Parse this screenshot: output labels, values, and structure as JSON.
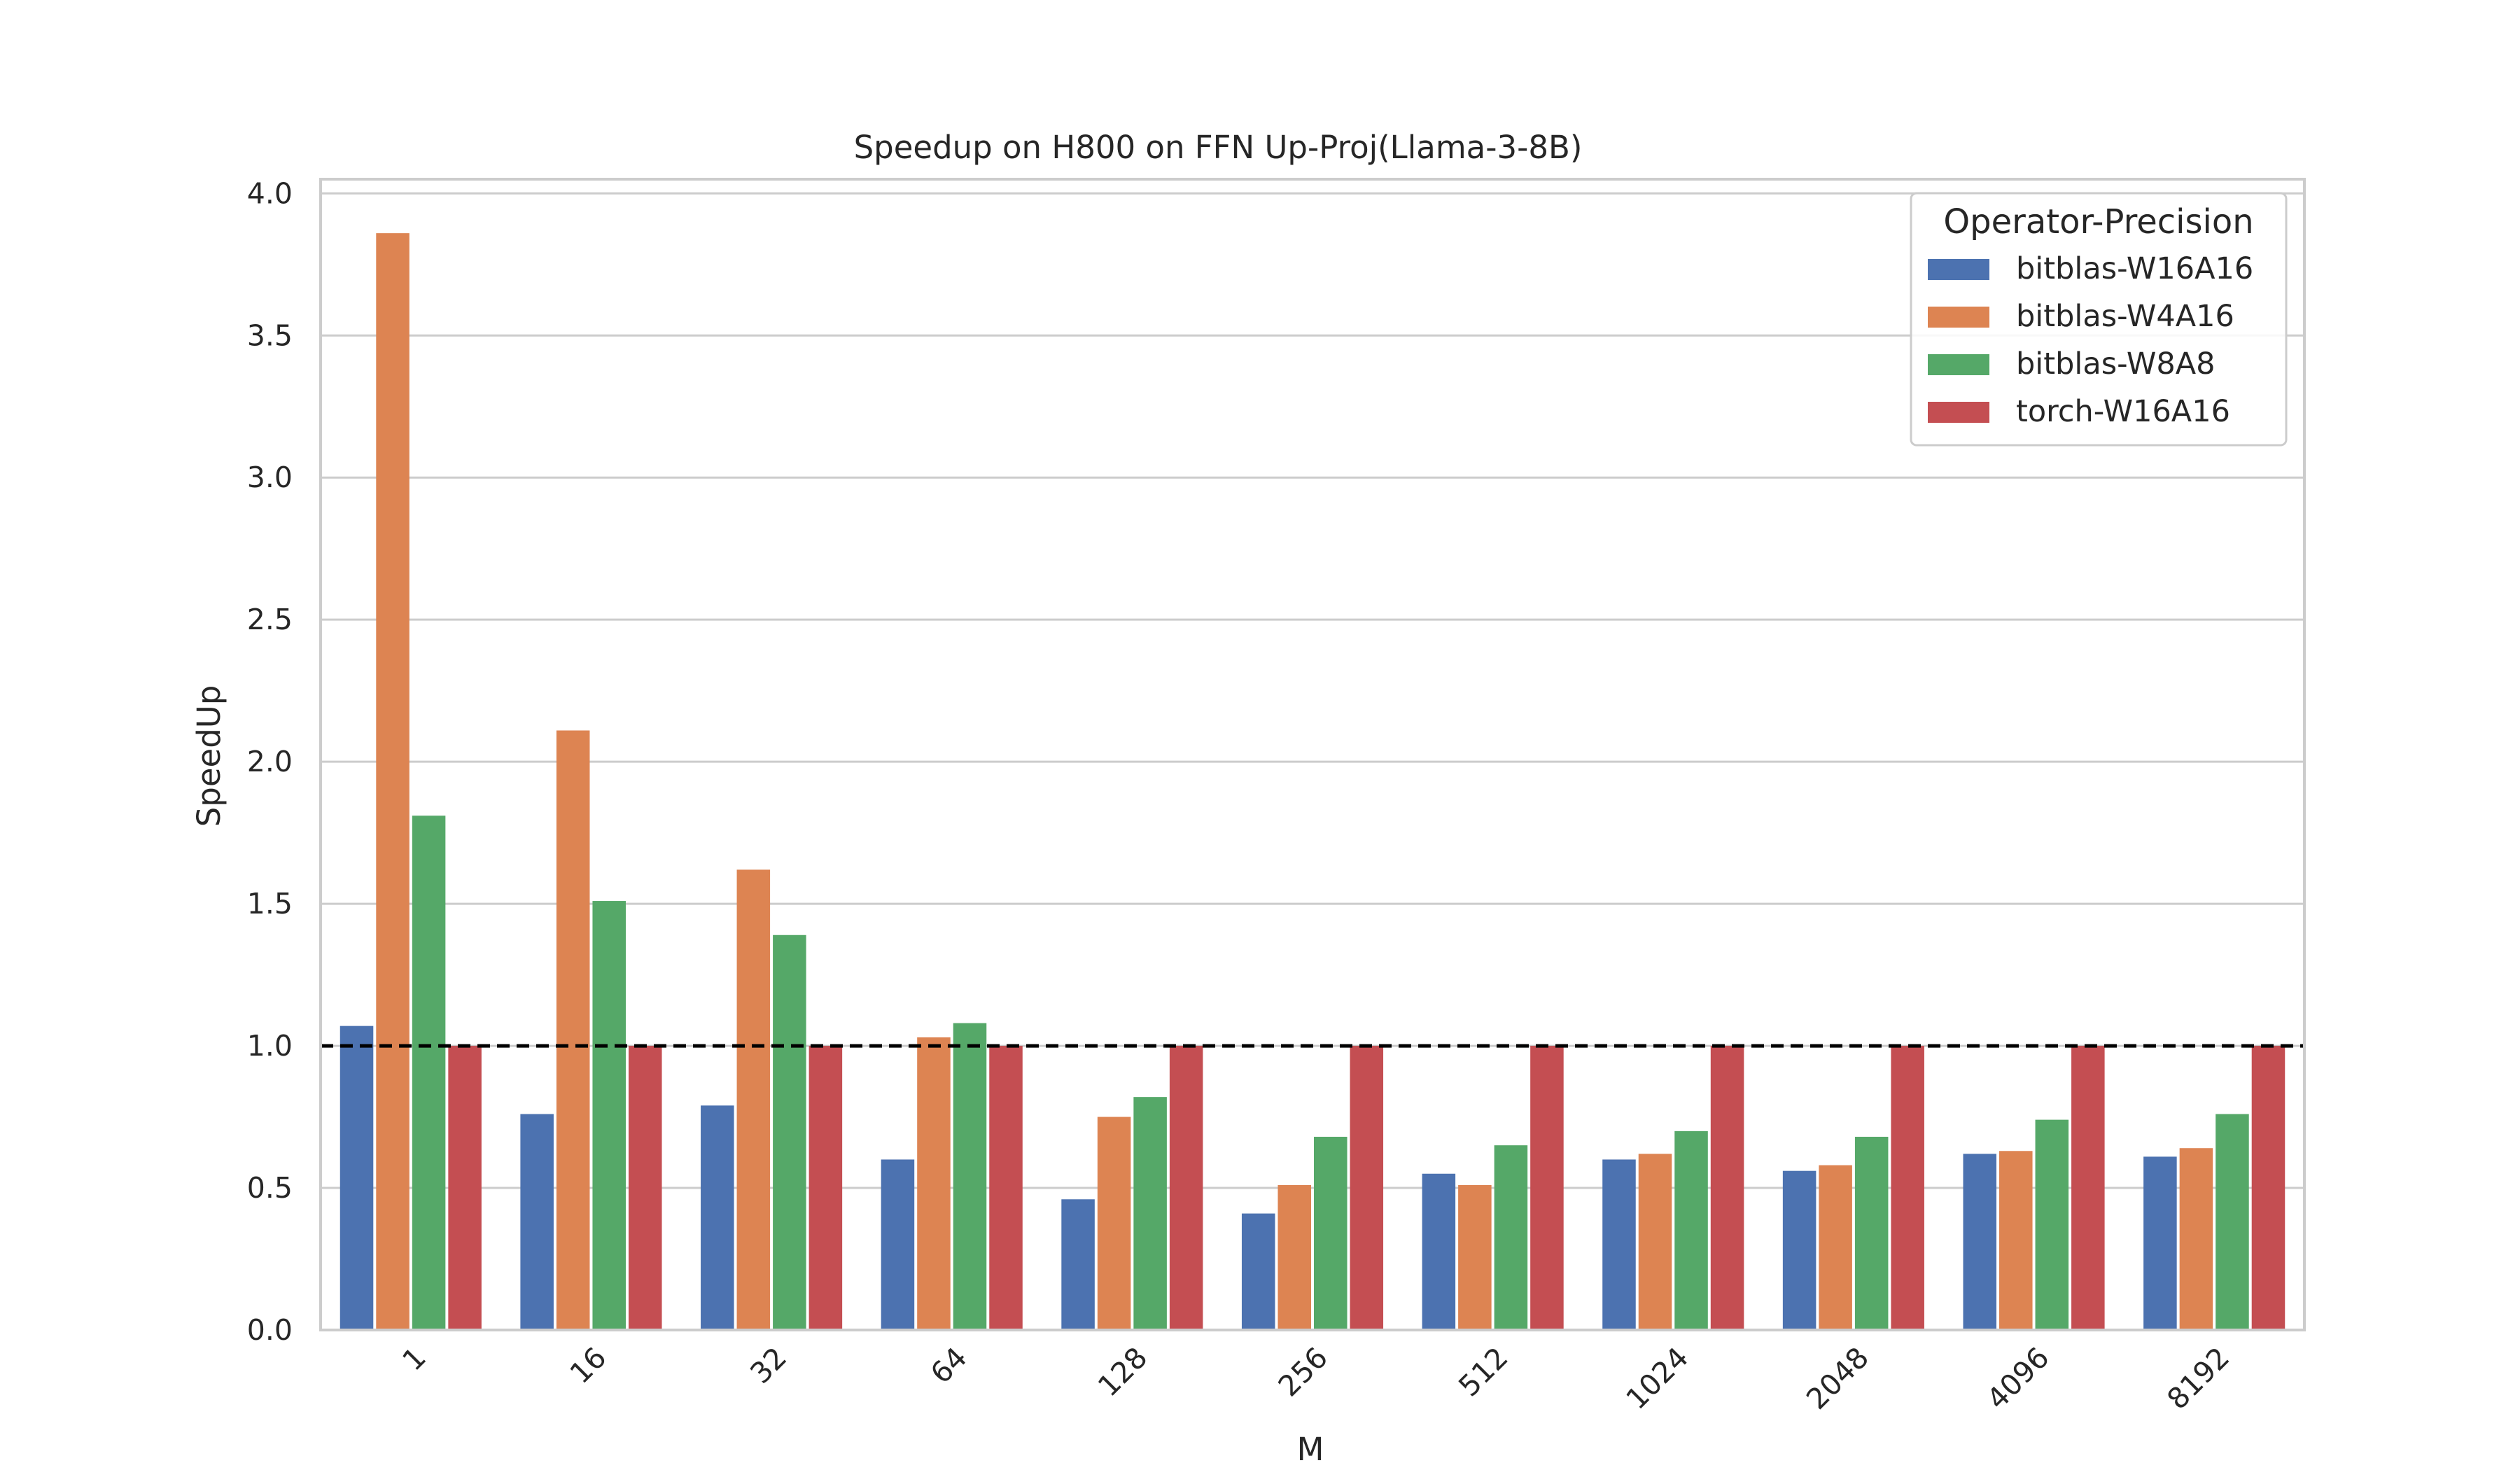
{
  "chart_data": {
    "type": "bar",
    "title": "Speedup on H800 on FFN Up-Proj(Llama-3-8B)",
    "xlabel": "M",
    "ylabel": "SpeedUp",
    "categories": [
      "1",
      "16",
      "32",
      "64",
      "128",
      "256",
      "512",
      "1024",
      "2048",
      "4096",
      "8192"
    ],
    "ylim": [
      0,
      4.05
    ],
    "yticks": [
      "0.0",
      "0.5",
      "1.0",
      "1.5",
      "2.0",
      "2.5",
      "3.0",
      "3.5",
      "4.0"
    ],
    "grid": true,
    "reference_line": 1.0,
    "legend": {
      "title": "Operator-Precision",
      "placement": "top-right"
    },
    "series": [
      {
        "name": "bitblas-W16A16",
        "color": "#4c72b0",
        "values": [
          1.07,
          0.76,
          0.79,
          0.6,
          0.46,
          0.41,
          0.55,
          0.6,
          0.56,
          0.62,
          0.61
        ]
      },
      {
        "name": "bitblas-W4A16",
        "color": "#dd8452",
        "values": [
          3.86,
          2.11,
          1.62,
          1.03,
          0.75,
          0.51,
          0.51,
          0.62,
          0.58,
          0.63,
          0.64
        ]
      },
      {
        "name": "bitblas-W8A8",
        "color": "#55a868",
        "values": [
          1.81,
          1.51,
          1.39,
          1.08,
          0.82,
          0.68,
          0.65,
          0.7,
          0.68,
          0.74,
          0.76
        ]
      },
      {
        "name": "torch-W16A16",
        "color": "#c44e52",
        "values": [
          1.0,
          1.0,
          1.0,
          1.0,
          1.0,
          1.0,
          1.0,
          1.0,
          1.0,
          1.0,
          1.0
        ]
      }
    ]
  }
}
